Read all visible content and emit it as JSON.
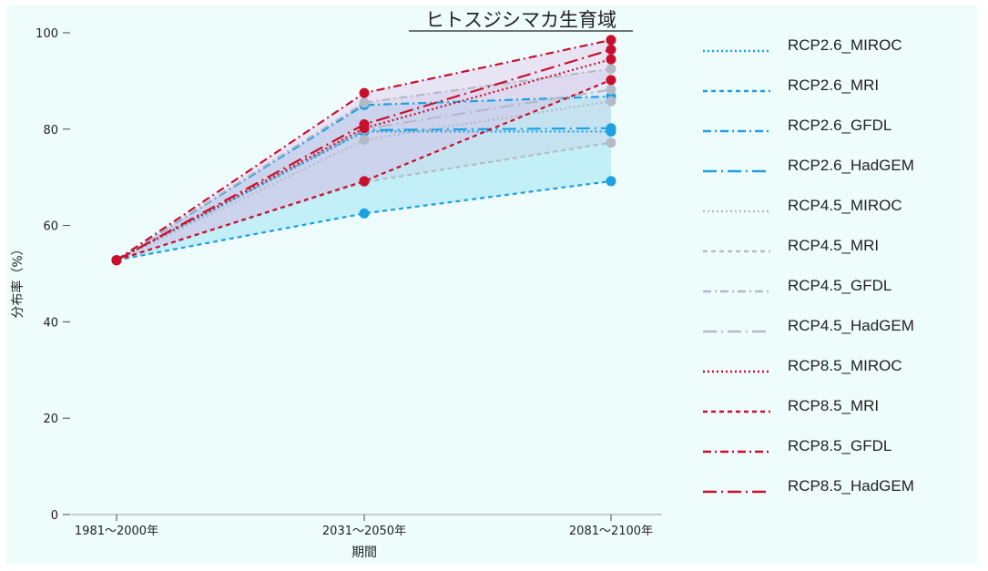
{
  "chart_data": {
    "type": "line",
    "title": "ヒトスジシマカ生育域",
    "xlabel": "期間",
    "ylabel": "分布率（%）",
    "categories": [
      "1981～2000年",
      "2031～2050年",
      "2081～2100年"
    ],
    "ylim": [
      0,
      100
    ],
    "yticks": [
      0,
      20,
      40,
      60,
      80,
      100
    ],
    "grid": false,
    "legend_position": "right",
    "series": [
      {
        "name": "RCP2.6_MIROC",
        "values": [
          52.8,
          79.5,
          79.5
        ],
        "color": "#1ba1e2",
        "dash": "dot"
      },
      {
        "name": "RCP2.6_MRI",
        "values": [
          52.8,
          62.5,
          69.2
        ],
        "color": "#1ba1e2",
        "dash": "dash"
      },
      {
        "name": "RCP2.6_GFDL",
        "values": [
          52.8,
          85.0,
          86.8
        ],
        "color": "#1ba1e2",
        "dash": "dashdot"
      },
      {
        "name": "RCP2.6_HadGEM",
        "values": [
          52.8,
          79.8,
          80.2
        ],
        "color": "#1ba1e2",
        "dash": "longdashdot"
      },
      {
        "name": "RCP4.5_MIROC",
        "values": [
          52.8,
          77.8,
          85.8
        ],
        "color": "#b4bac8",
        "dash": "dot"
      },
      {
        "name": "RCP4.5_MRI",
        "values": [
          52.8,
          69.0,
          77.2
        ],
        "color": "#b4bac8",
        "dash": "dash"
      },
      {
        "name": "RCP4.5_GFDL",
        "values": [
          52.8,
          85.5,
          92.5
        ],
        "color": "#b4bac8",
        "dash": "dashdot"
      },
      {
        "name": "RCP4.5_HadGEM",
        "values": [
          52.8,
          80.0,
          88.2
        ],
        "color": "#b4bac8",
        "dash": "longdashdot"
      },
      {
        "name": "RCP8.5_MIROC",
        "values": [
          52.8,
          80.2,
          94.5
        ],
        "color": "#c8102e",
        "dash": "dot"
      },
      {
        "name": "RCP8.5_MRI",
        "values": [
          52.8,
          69.2,
          90.2
        ],
        "color": "#c8102e",
        "dash": "dash"
      },
      {
        "name": "RCP8.5_GFDL",
        "values": [
          52.8,
          87.5,
          98.5
        ],
        "color": "#c8102e",
        "dash": "dashdot"
      },
      {
        "name": "RCP8.5_HadGEM",
        "values": [
          52.8,
          81.0,
          96.5
        ],
        "color": "#c8102e",
        "dash": "longdashdot"
      }
    ],
    "bands": [
      {
        "group": "RCP2.6",
        "color": "#8fdff5",
        "opacity": 0.45
      },
      {
        "group": "RCP4.5",
        "color": "#c8cbe6",
        "opacity": 0.35
      },
      {
        "group": "RCP8.5",
        "color": "#d9b8e6",
        "opacity": 0.35
      }
    ]
  }
}
